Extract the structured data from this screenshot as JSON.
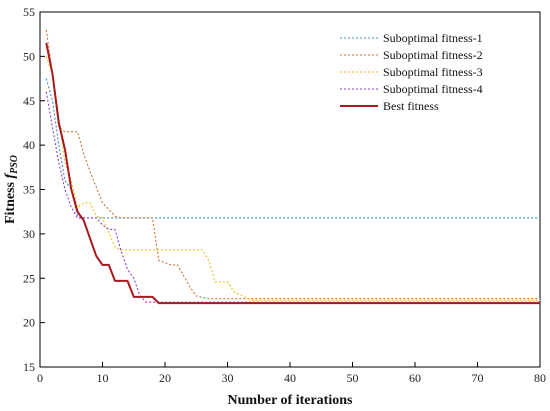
{
  "chart_data": {
    "type": "line",
    "xlabel": "Number of iterations",
    "ylabel_main": "Fitness ",
    "ylabel_symbol": "f",
    "ylabel_subscript": "PSO",
    "xlim": [
      0,
      80
    ],
    "ylim": [
      15,
      55
    ],
    "xticks": [
      0,
      10,
      20,
      30,
      40,
      50,
      60,
      70,
      80
    ],
    "yticks": [
      15,
      20,
      25,
      30,
      35,
      40,
      45,
      50,
      55
    ],
    "grid": false,
    "legend_position": "top-right",
    "series": [
      {
        "name": "Suboptimal fitness-1",
        "color": "#3a8fc7",
        "style": "dotted",
        "x": [
          1,
          2,
          3,
          4,
          5,
          6,
          7,
          80
        ],
        "y": [
          47.5,
          45,
          40,
          36,
          35,
          32,
          31.8,
          31.8
        ]
      },
      {
        "name": "Suboptimal fitness-2",
        "color": "#d4703a",
        "style": "dotted",
        "x": [
          1,
          2,
          3,
          4,
          6,
          7,
          8,
          10,
          12,
          13,
          18,
          19,
          21,
          22,
          24,
          25,
          27,
          33,
          80
        ],
        "y": [
          53,
          48,
          42,
          41.5,
          41.5,
          39,
          37,
          33.5,
          32,
          31.8,
          31.8,
          27,
          26.5,
          26.5,
          24,
          23,
          22.7,
          22.7,
          22.7
        ]
      },
      {
        "name": "Suboptimal fitness-3",
        "color": "#e8c020",
        "style": "dotted",
        "x": [
          1,
          2,
          3,
          4,
          5,
          6,
          7,
          8,
          9,
          10,
          12,
          13,
          26,
          27,
          28,
          30,
          31,
          33,
          34,
          80
        ],
        "y": [
          50,
          48,
          43,
          38,
          36,
          33,
          33.5,
          33.5,
          32,
          31.8,
          28.5,
          28.2,
          28.2,
          27,
          24.6,
          24.6,
          23.5,
          22.8,
          22.5,
          22.5
        ]
      },
      {
        "name": "Suboptimal fitness-4",
        "color": "#8b3fc8",
        "style": "dotted",
        "x": [
          1,
          2,
          3,
          4,
          5,
          6,
          9,
          10,
          11,
          12,
          13,
          14,
          15,
          16,
          17,
          80
        ],
        "y": [
          46,
          42,
          38,
          35,
          33,
          31.8,
          31.8,
          31,
          30.5,
          30.5,
          28,
          26,
          25,
          23,
          22.3,
          22.3
        ]
      },
      {
        "name": "Best fitness",
        "color": "#a8191e",
        "style": "solid",
        "x": [
          1,
          2,
          3,
          4,
          5,
          6,
          7,
          8,
          9,
          10,
          11,
          12,
          14,
          15,
          18,
          19,
          80
        ],
        "y": [
          51.5,
          48,
          42.5,
          39.5,
          35,
          32.5,
          31.5,
          29.5,
          27.5,
          26.5,
          26.5,
          24.7,
          24.7,
          22.9,
          22.9,
          22.2,
          22.2
        ]
      }
    ]
  }
}
